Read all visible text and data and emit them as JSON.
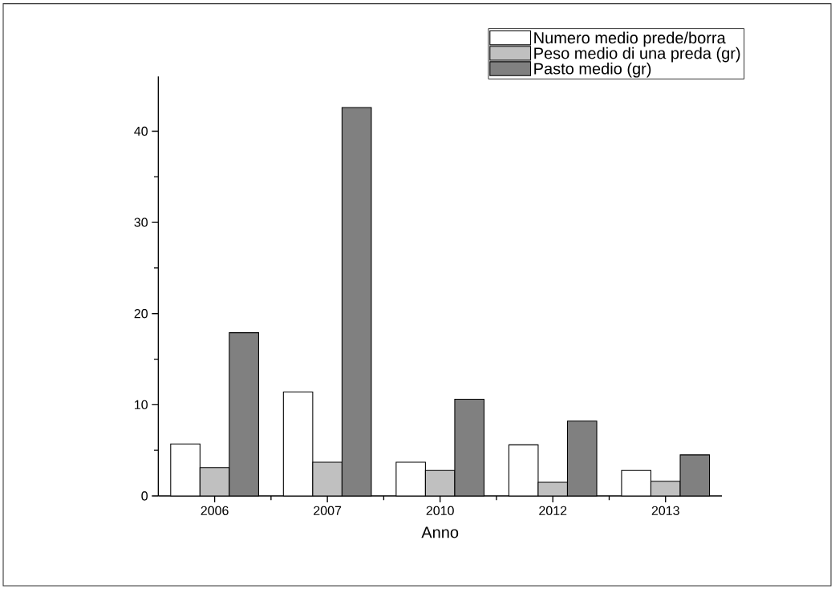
{
  "chart_data": {
    "type": "bar",
    "xlabel": "Anno",
    "categories": [
      "2006",
      "2007",
      "2010",
      "2012",
      "2013"
    ],
    "series": [
      {
        "name": "Numero medio prede/borra",
        "color": "#ffffff",
        "values": [
          5.7,
          11.4,
          3.7,
          5.6,
          2.8
        ]
      },
      {
        "name": "Peso medio di una preda (gr)",
        "color": "#c0c0c0",
        "values": [
          3.1,
          3.7,
          2.8,
          1.5,
          1.6
        ]
      },
      {
        "name": "Pasto medio (gr)",
        "color": "#808080",
        "values": [
          17.9,
          42.6,
          10.6,
          8.2,
          4.5
        ]
      }
    ],
    "ylim": [
      0,
      46
    ],
    "yticks": [
      0,
      10,
      20,
      30,
      40
    ],
    "grid": false,
    "legend": "top right"
  }
}
